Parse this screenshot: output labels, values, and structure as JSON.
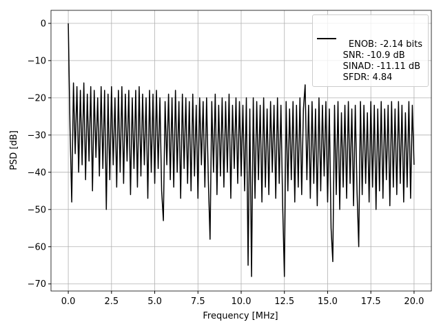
{
  "chart_data": {
    "type": "line",
    "xlabel": "Frequency [MHz]",
    "ylabel": "PSD [dB]",
    "xlim": [
      -1,
      21
    ],
    "ylim": [
      -71.9,
      3.5
    ],
    "xticks": [
      {
        "value": 0,
        "label": "0.0"
      },
      2.5,
      {
        "value": 5,
        "label": "5.0"
      },
      7.5,
      {
        "value": 10,
        "label": "10.0"
      },
      12.5,
      {
        "value": 15,
        "label": "15.0"
      },
      17.5,
      {
        "value": 20,
        "label": "20.0"
      }
    ],
    "yticks": [
      0,
      {
        "value": -10,
        "label": "−10"
      },
      {
        "value": -20,
        "label": "−20"
      },
      {
        "value": -30,
        "label": "−30"
      },
      {
        "value": -40,
        "label": "−40"
      },
      {
        "value": -50,
        "label": "−50"
      },
      {
        "value": -60,
        "label": "−60"
      },
      {
        "value": -70,
        "label": "−70"
      }
    ],
    "grid": true,
    "legend": "upper right",
    "x": [
      0.0,
      0.1,
      0.2,
      0.3,
      0.4,
      0.5,
      0.6,
      0.7,
      0.8,
      0.9,
      1.0,
      1.1,
      1.2,
      1.3,
      1.4,
      1.5,
      1.6,
      1.7,
      1.8,
      1.9,
      2.0,
      2.1,
      2.2,
      2.3,
      2.4,
      2.5,
      2.6,
      2.7,
      2.8,
      2.9,
      3.0,
      3.1,
      3.2,
      3.3,
      3.4,
      3.5,
      3.6,
      3.7,
      3.8,
      3.9,
      4.0,
      4.1,
      4.2,
      4.3,
      4.4,
      4.5,
      4.6,
      4.7,
      4.8,
      4.9,
      5.0,
      5.1,
      5.2,
      5.3,
      5.4,
      5.5,
      5.6,
      5.7,
      5.8,
      5.9,
      6.0,
      6.1,
      6.2,
      6.3,
      6.4,
      6.5,
      6.6,
      6.7,
      6.8,
      6.9,
      7.0,
      7.1,
      7.2,
      7.3,
      7.4,
      7.5,
      7.6,
      7.7,
      7.8,
      7.9,
      8.0,
      8.1,
      8.2,
      8.3,
      8.4,
      8.5,
      8.6,
      8.7,
      8.8,
      8.9,
      9.0,
      9.1,
      9.2,
      9.3,
      9.4,
      9.5,
      9.6,
      9.7,
      9.8,
      9.9,
      10.0,
      10.1,
      10.2,
      10.3,
      10.4,
      10.5,
      10.6,
      10.7,
      10.8,
      10.9,
      11.0,
      11.1,
      11.2,
      11.3,
      11.4,
      11.5,
      11.6,
      11.7,
      11.8,
      11.9,
      12.0,
      12.1,
      12.2,
      12.3,
      12.4,
      12.5,
      12.6,
      12.7,
      12.8,
      12.9,
      13.0,
      13.1,
      13.2,
      13.3,
      13.4,
      13.5,
      13.6,
      13.7,
      13.8,
      13.9,
      14.0,
      14.1,
      14.2,
      14.3,
      14.4,
      14.5,
      14.6,
      14.7,
      14.8,
      14.9,
      15.0,
      15.1,
      15.2,
      15.3,
      15.4,
      15.5,
      15.6,
      15.7,
      15.8,
      15.9,
      16.0,
      16.1,
      16.2,
      16.3,
      16.4,
      16.5,
      16.6,
      16.7,
      16.8,
      16.9,
      17.0,
      17.1,
      17.2,
      17.3,
      17.4,
      17.5,
      17.6,
      17.7,
      17.8,
      17.9,
      18.0,
      18.1,
      18.2,
      18.3,
      18.4,
      18.5,
      18.6,
      18.7,
      18.8,
      18.9,
      19.0,
      19.1,
      19.2,
      19.3,
      19.4,
      19.5,
      19.6,
      19.7,
      19.8,
      19.9,
      20.0
    ],
    "series": [
      {
        "name": "ENOB: -2.14 bits\nSNR: -10.9 dB\nSINAD: -11.11 dB\nSFDR: 4.84",
        "color": "#000000",
        "values": [
          0,
          -28,
          -48,
          -16,
          -35,
          -17,
          -40,
          -18,
          -38,
          -16,
          -42,
          -19,
          -37,
          -17,
          -45,
          -18,
          -36,
          -20,
          -41,
          -17,
          -39,
          -18,
          -50,
          -19,
          -42,
          -17,
          -38,
          -20,
          -44,
          -18,
          -40,
          -17,
          -43,
          -19,
          -37,
          -18,
          -46,
          -20,
          -39,
          -18,
          -44,
          -17,
          -41,
          -19,
          -38,
          -20,
          -47,
          -18,
          -40,
          -19,
          -43,
          -18,
          -39,
          -20,
          -45,
          -53,
          -21,
          -38,
          -19,
          -42,
          -20,
          -44,
          -18,
          -40,
          -21,
          -47,
          -19,
          -39,
          -20,
          -43,
          -21,
          -45,
          -19,
          -41,
          -22,
          -47,
          -20,
          -38,
          -21,
          -44,
          -20,
          -42,
          -58,
          -21,
          -40,
          -19,
          -46,
          -22,
          -41,
          -20,
          -44,
          -21,
          -40,
          -19,
          -47,
          -22,
          -39,
          -20,
          -43,
          -21,
          -41,
          -22,
          -45,
          -20,
          -65,
          -23,
          -68,
          -20,
          -47,
          -21,
          -42,
          -22,
          -48,
          -20,
          -44,
          -23,
          -46,
          -21,
          -40,
          -22,
          -47,
          -20,
          -43,
          -22,
          -49,
          -68,
          -21,
          -45,
          -23,
          -42,
          -21,
          -48,
          -22,
          -44,
          -20,
          -46,
          -23,
          -16.5,
          -42,
          -22,
          -47,
          -21,
          -43,
          -23,
          -49,
          -20,
          -45,
          -22,
          -41,
          -21,
          -48,
          -23,
          -55,
          -64,
          -22,
          -46,
          -21,
          -50,
          -24,
          -44,
          -22,
          -47,
          -21,
          -43,
          -23,
          -49,
          -22,
          -45,
          -60,
          -21,
          -46,
          -22,
          -43,
          -24,
          -48,
          -21,
          -44,
          -22,
          -50,
          -23,
          -45,
          -21,
          -47,
          -23,
          -42,
          -22,
          -49,
          -21,
          -44,
          -23,
          -46,
          -21,
          -43,
          -22,
          -48,
          -24,
          -44,
          -21,
          -47,
          -22,
          -38
        ]
      }
    ]
  }
}
